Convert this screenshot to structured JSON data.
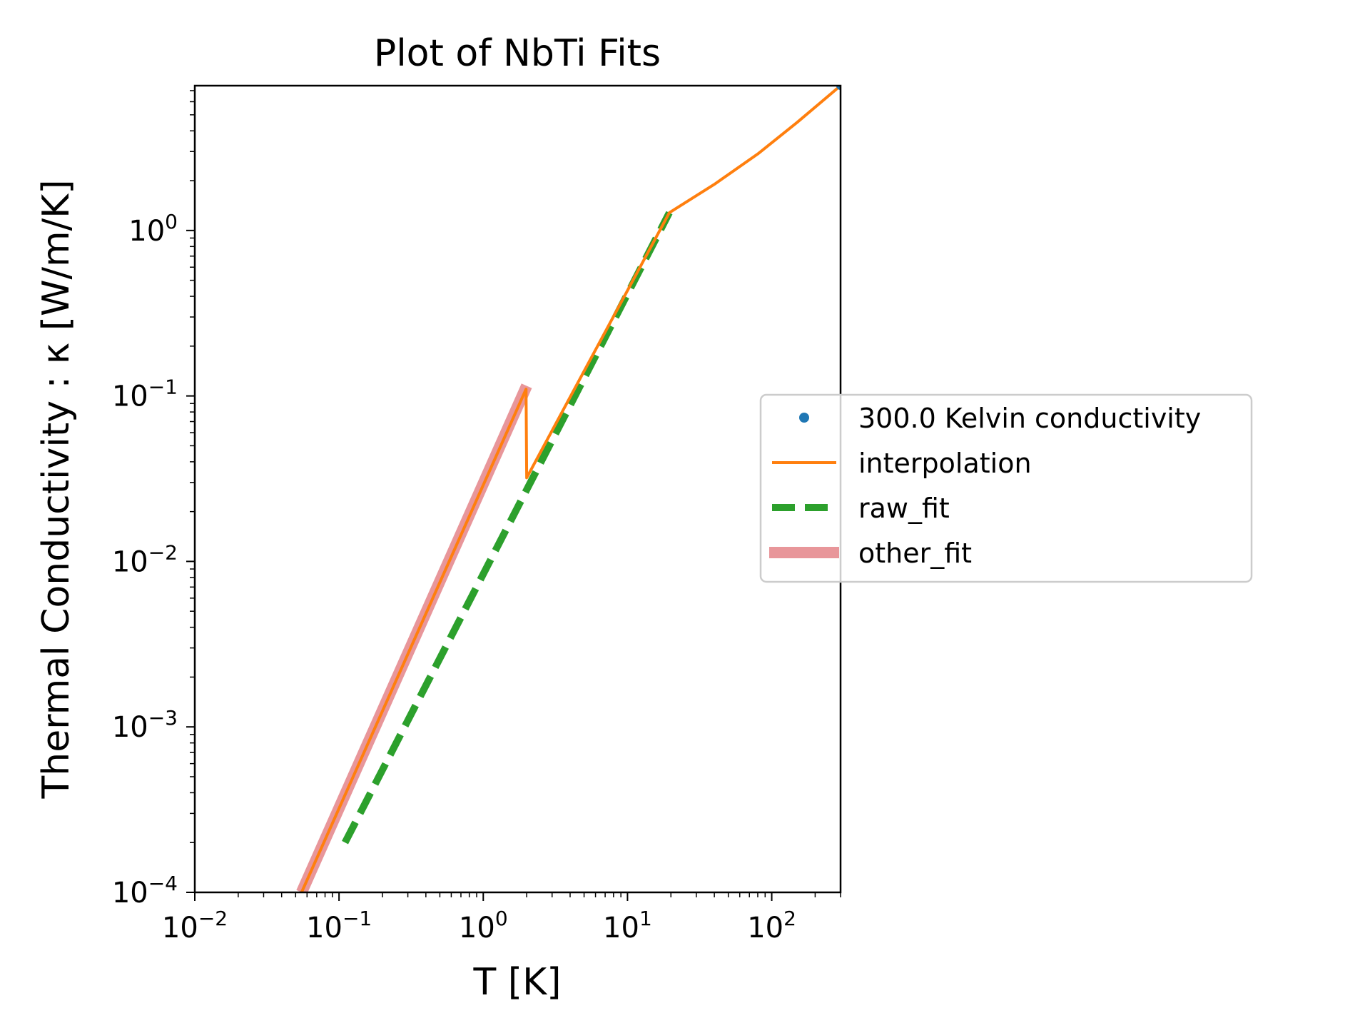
{
  "chart_data": {
    "type": "line",
    "title": "Plot of NbTi Fits",
    "xlabel": "T [K]",
    "ylabel": "Thermal Conductivity : κ [W/m/K]",
    "xscale": "log",
    "yscale": "log",
    "xlim": [
      0.01,
      300
    ],
    "ylim": [
      0.0001,
      7.5
    ],
    "grid": false,
    "legend_position": "right, outside plot area",
    "xticks": [
      {
        "value": 0.01,
        "base": "10",
        "exp": "−2"
      },
      {
        "value": 0.1,
        "base": "10",
        "exp": "−1"
      },
      {
        "value": 1,
        "base": "10",
        "exp": "0"
      },
      {
        "value": 10,
        "base": "10",
        "exp": "1"
      },
      {
        "value": 100,
        "base": "10",
        "exp": "2"
      }
    ],
    "yticks": [
      {
        "value": 0.0001,
        "base": "10",
        "exp": "−4"
      },
      {
        "value": 0.001,
        "base": "10",
        "exp": "−3"
      },
      {
        "value": 0.01,
        "base": "10",
        "exp": "−2"
      },
      {
        "value": 0.1,
        "base": "10",
        "exp": "−1"
      },
      {
        "value": 1,
        "base": "10",
        "exp": "0"
      }
    ],
    "series": [
      {
        "name": "300.0 Kelvin conductivity",
        "kind": "marker",
        "color": "#1f77b4",
        "points": [
          {
            "x": 300,
            "y": 7.5
          }
        ]
      },
      {
        "name": "interpolation",
        "kind": "line",
        "color": "#ff7f0e",
        "points": [
          {
            "x": 0.055,
            "y": 0.0001
          },
          {
            "x": 1.98,
            "y": 0.11
          },
          {
            "x": 2.0,
            "y": 0.032
          },
          {
            "x": 19.5,
            "y": 1.28
          },
          {
            "x": 40,
            "y": 1.9
          },
          {
            "x": 80,
            "y": 2.9
          },
          {
            "x": 150,
            "y": 4.5
          },
          {
            "x": 300,
            "y": 7.5
          }
        ]
      },
      {
        "name": "raw_fit",
        "kind": "dashed",
        "color": "#2ca02c",
        "points": [
          {
            "x": 0.11,
            "y": 0.0002
          },
          {
            "x": 19.5,
            "y": 1.28
          }
        ]
      },
      {
        "name": "other_fit",
        "kind": "thick",
        "color": "#e8969a",
        "points": [
          {
            "x": 0.055,
            "y": 0.0001
          },
          {
            "x": 2.0,
            "y": 0.115
          }
        ]
      }
    ]
  }
}
